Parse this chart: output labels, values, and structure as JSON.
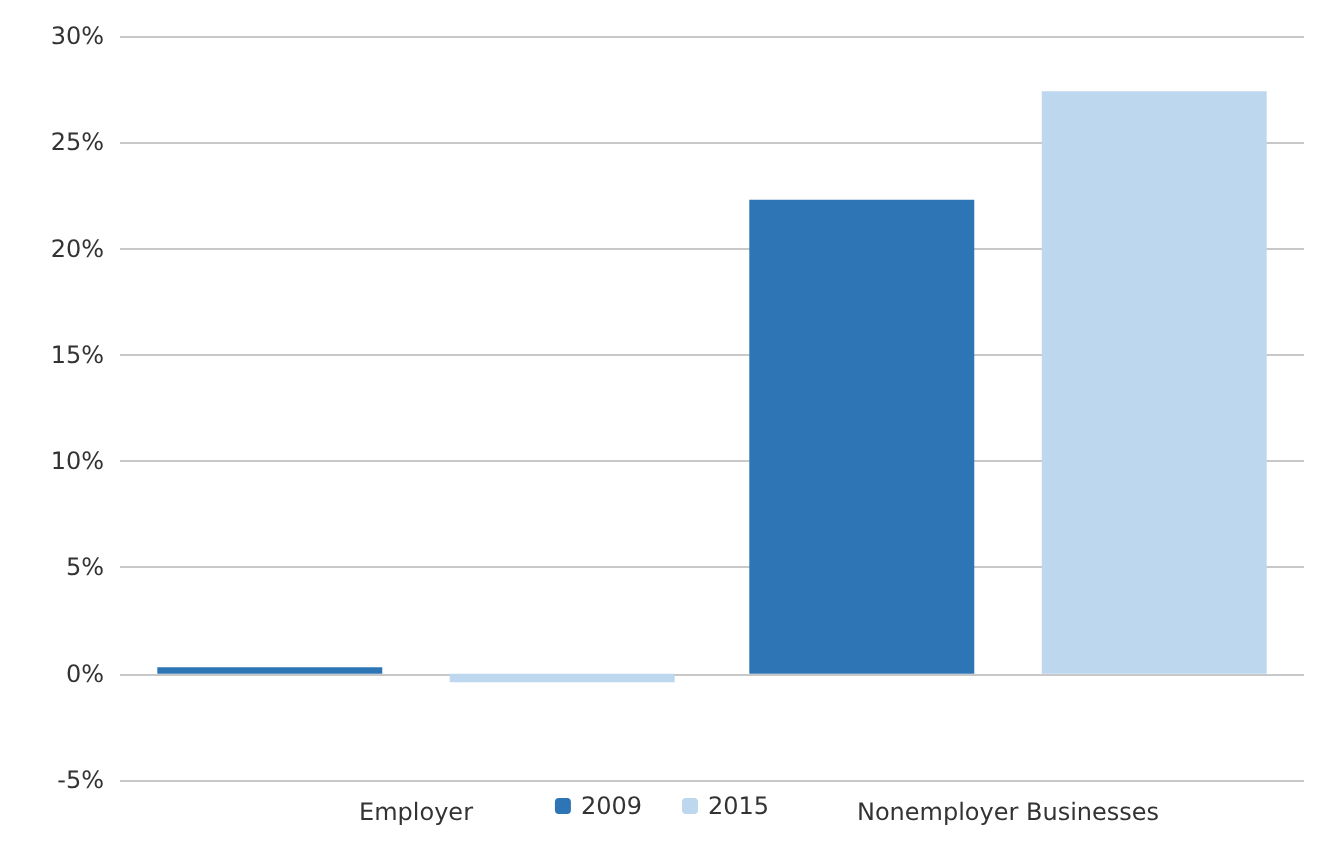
{
  "chart_data": {
    "type": "bar",
    "categories": [
      "Employer",
      "Nonemployer Businesses"
    ],
    "series": [
      {
        "name": "2009",
        "color": "#2e75b6",
        "values": [
          0.3,
          22.3
        ]
      },
      {
        "name": "2015",
        "color": "#bdd7ee",
        "values": [
          -0.4,
          27.4
        ]
      }
    ],
    "ylim": [
      -5,
      30
    ],
    "yticks": [
      {
        "value": -5,
        "label": "-5%"
      },
      {
        "value": 0,
        "label": "0%"
      },
      {
        "value": 5,
        "label": "5%"
      },
      {
        "value": 10,
        "label": "10%"
      },
      {
        "value": 15,
        "label": "15%"
      },
      {
        "value": 20,
        "label": "20%"
      },
      {
        "value": 25,
        "label": "25%"
      },
      {
        "value": 30,
        "label": "30%"
      }
    ],
    "grid": "y",
    "legend": "bottom"
  }
}
